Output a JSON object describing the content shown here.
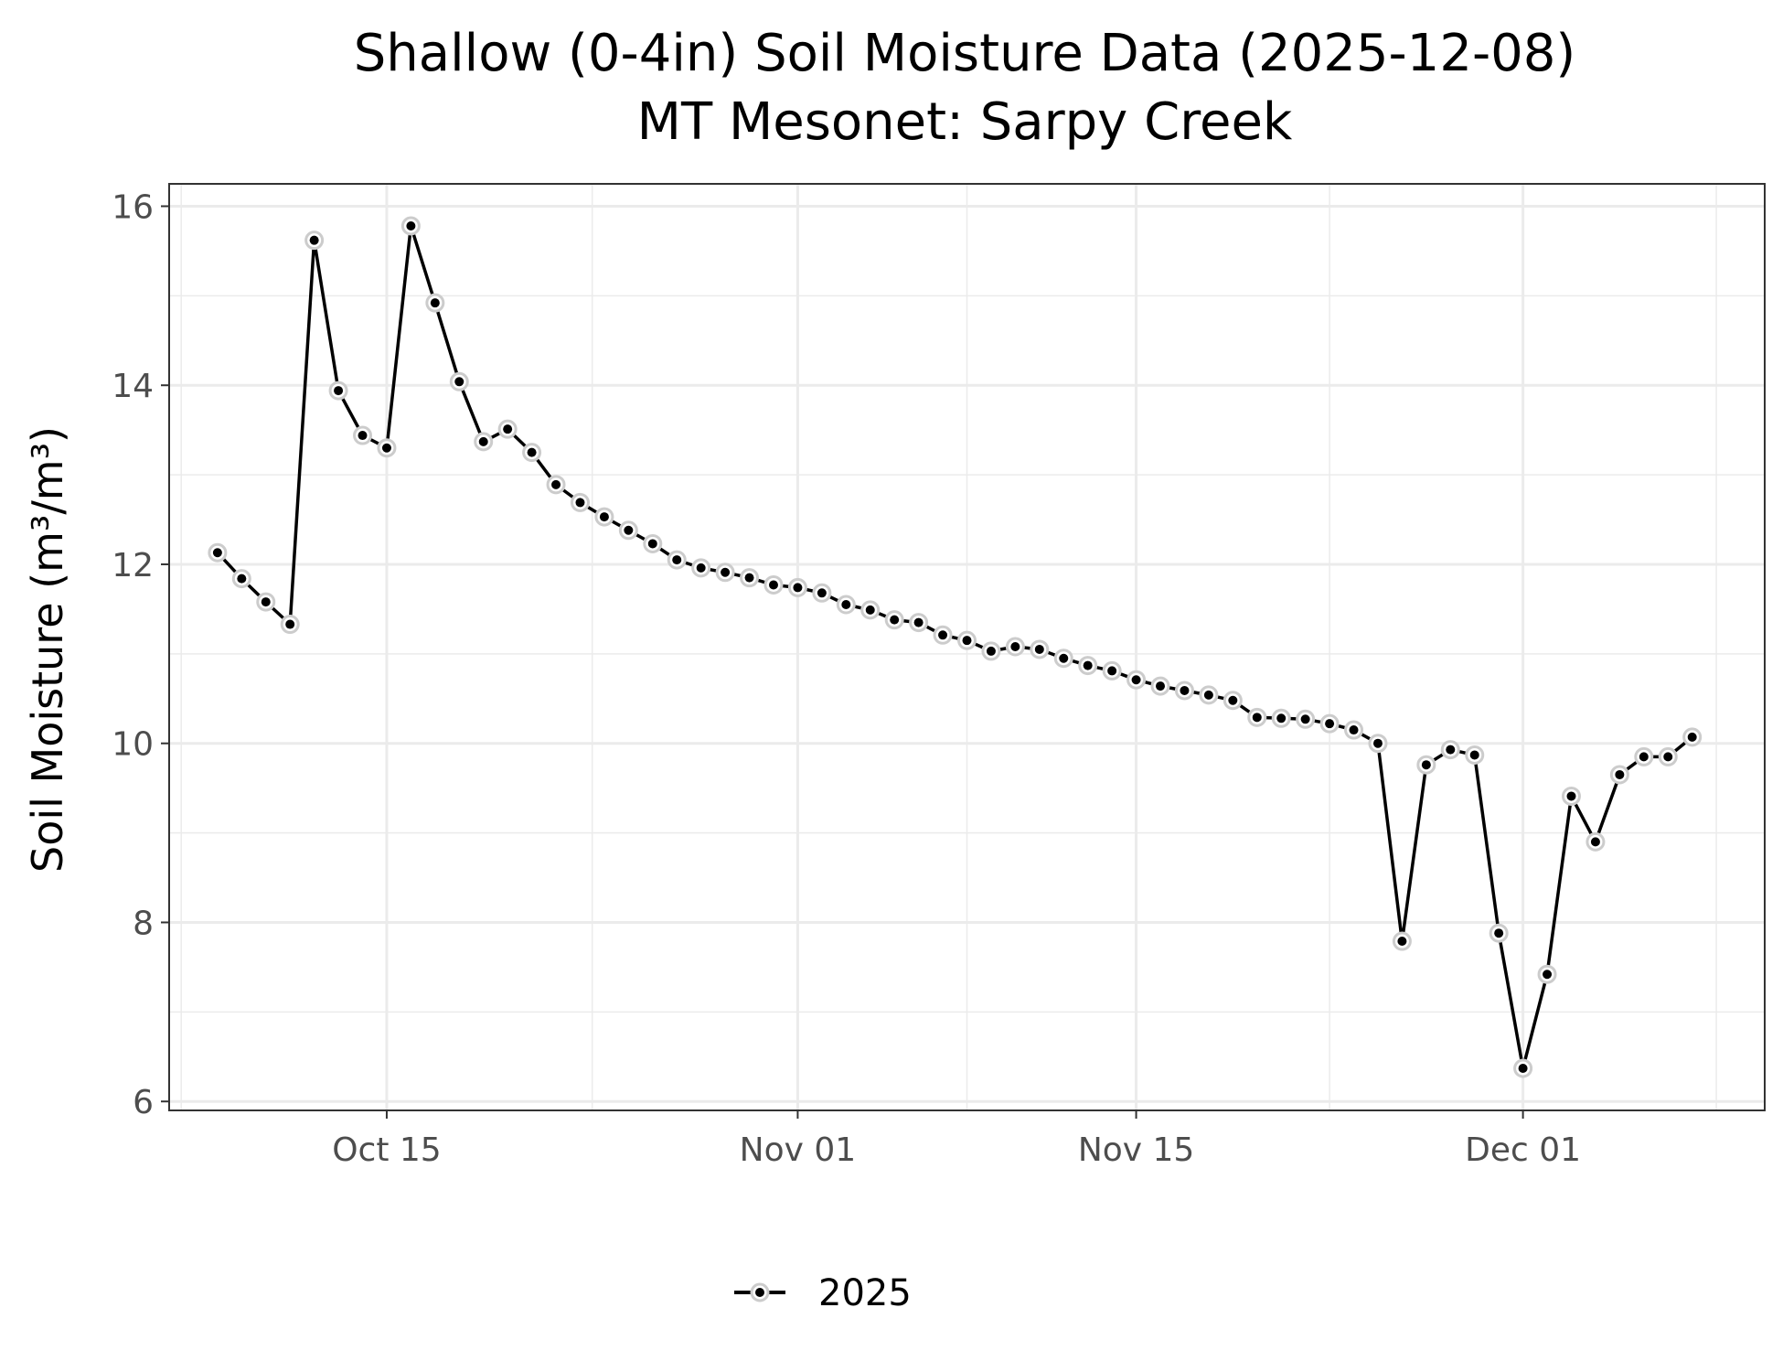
{
  "chart_data": {
    "type": "line",
    "title": "Shallow (0-4in) Soil Moisture Data (2025-12-08)",
    "subtitle": "MT Mesonet: Sarpy Creek",
    "ylabel": "Soil Moisture (m³/m³)",
    "xlabel": "",
    "ylim": [
      5.9,
      16.25
    ],
    "yticks": [
      6,
      8,
      10,
      12,
      14,
      16
    ],
    "xlim": [
      "2025-10-06",
      "2025-12-11"
    ],
    "xticks": [
      {
        "date": "2025-10-15",
        "label": "Oct 15"
      },
      {
        "date": "2025-11-01",
        "label": "Nov 01"
      },
      {
        "date": "2025-11-15",
        "label": "Nov 15"
      },
      {
        "date": "2025-12-01",
        "label": "Dec 01"
      }
    ],
    "grid": true,
    "legend_position": "bottom",
    "series": [
      {
        "name": "2025",
        "color": "#000000",
        "point_halo_color": "#cccccc",
        "x": [
          "2025-10-08",
          "2025-10-09",
          "2025-10-10",
          "2025-10-11",
          "2025-10-12",
          "2025-10-13",
          "2025-10-14",
          "2025-10-15",
          "2025-10-16",
          "2025-10-17",
          "2025-10-18",
          "2025-10-19",
          "2025-10-20",
          "2025-10-21",
          "2025-10-22",
          "2025-10-23",
          "2025-10-24",
          "2025-10-25",
          "2025-10-26",
          "2025-10-27",
          "2025-10-28",
          "2025-10-29",
          "2025-10-30",
          "2025-10-31",
          "2025-11-01",
          "2025-11-02",
          "2025-11-03",
          "2025-11-04",
          "2025-11-05",
          "2025-11-06",
          "2025-11-07",
          "2025-11-08",
          "2025-11-09",
          "2025-11-10",
          "2025-11-11",
          "2025-11-12",
          "2025-11-13",
          "2025-11-14",
          "2025-11-15",
          "2025-11-16",
          "2025-11-17",
          "2025-11-18",
          "2025-11-19",
          "2025-11-20",
          "2025-11-21",
          "2025-11-22",
          "2025-11-23",
          "2025-11-24",
          "2025-11-25",
          "2025-11-26",
          "2025-11-27",
          "2025-11-28",
          "2025-11-29",
          "2025-11-30",
          "2025-12-01",
          "2025-12-02",
          "2025-12-03",
          "2025-12-04",
          "2025-12-05",
          "2025-12-06",
          "2025-12-07",
          "2025-12-08"
        ],
        "values": [
          12.13,
          11.84,
          11.58,
          11.33,
          15.62,
          13.94,
          13.44,
          13.3,
          15.78,
          14.92,
          14.04,
          13.37,
          13.51,
          13.25,
          12.89,
          12.69,
          12.53,
          12.38,
          12.23,
          12.05,
          11.96,
          11.91,
          11.85,
          11.77,
          11.74,
          11.68,
          11.55,
          11.49,
          11.38,
          11.35,
          11.21,
          11.15,
          11.03,
          11.08,
          11.05,
          10.95,
          10.87,
          10.81,
          10.71,
          10.64,
          10.59,
          10.54,
          10.48,
          10.29,
          10.28,
          10.27,
          10.22,
          10.15,
          10.0,
          7.79,
          9.76,
          9.93,
          9.87,
          7.88,
          6.37,
          7.42,
          9.41,
          8.9,
          9.65,
          9.85,
          9.85,
          10.07
        ]
      }
    ]
  }
}
